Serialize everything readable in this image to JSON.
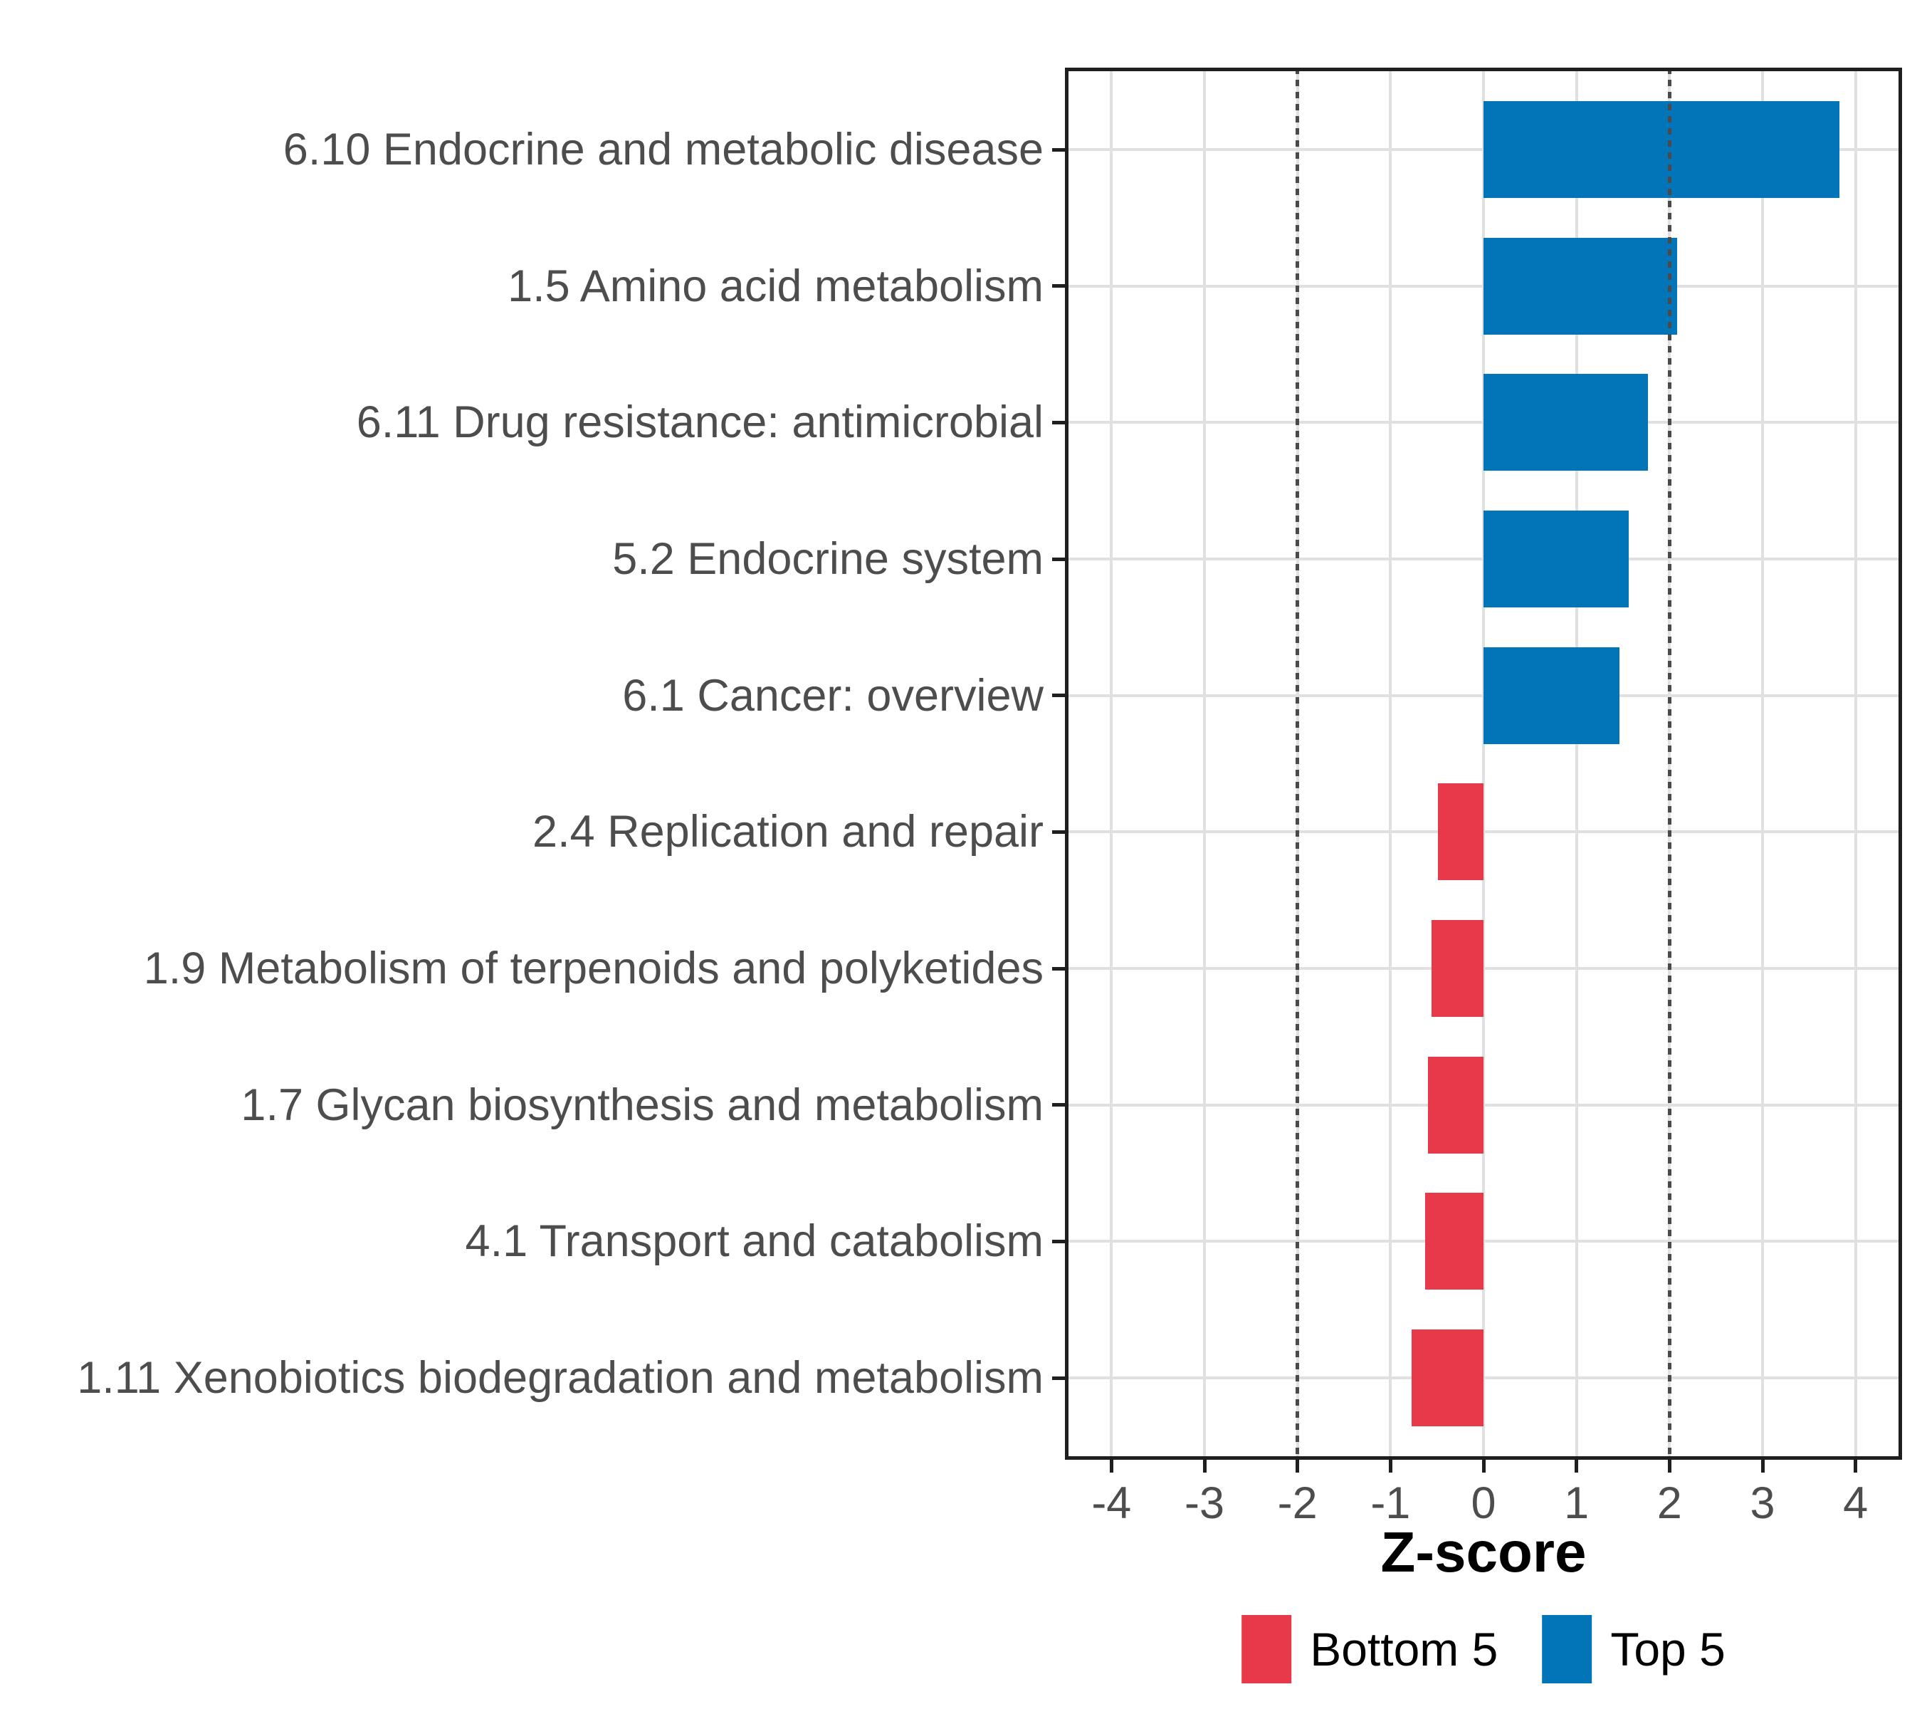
{
  "chart_data": {
    "type": "bar",
    "orientation": "horizontal",
    "title": "",
    "xlabel": "Z-score",
    "ylabel": "",
    "categories": [
      "6.10 Endocrine and metabolic disease",
      "1.5 Amino acid metabolism",
      "6.11 Drug resistance: antimicrobial",
      "5.2 Endocrine system",
      "6.1 Cancer: overview",
      "2.4 Replication and repair",
      "1.9 Metabolism of terpenoids and polyketides",
      "1.7 Glycan biosynthesis and metabolism",
      "4.1 Transport and catabolism",
      "1.11 Xenobiotics biodegradation and metabolism"
    ],
    "values": [
      3.83,
      2.08,
      1.77,
      1.56,
      1.46,
      -0.49,
      -0.56,
      -0.6,
      -0.63,
      -0.77
    ],
    "groups": [
      "Top 5",
      "Top 5",
      "Top 5",
      "Top 5",
      "Top 5",
      "Bottom 5",
      "Bottom 5",
      "Bottom 5",
      "Bottom 5",
      "Bottom 5"
    ],
    "group_colors": {
      "Top 5": "#0274B8",
      "Bottom 5": "#E8394A"
    },
    "xlim": [
      -4.5,
      4.5
    ],
    "x_ticks": [
      -4,
      -3,
      -2,
      -1,
      0,
      1,
      2,
      3,
      4
    ],
    "reference_lines": {
      "x": [
        -2,
        2
      ],
      "style": "dotted",
      "color": "#4A4A4A"
    },
    "grid": {
      "show": true,
      "color": "#E0E0E0"
    },
    "panel_border_color": "#1F1F1F",
    "axis_text_color": "#4D4D4D",
    "legend": {
      "position": "bottom",
      "items": [
        {
          "label": "Bottom 5",
          "color": "#E8394A"
        },
        {
          "label": "Top 5",
          "color": "#0274B8"
        }
      ]
    }
  }
}
